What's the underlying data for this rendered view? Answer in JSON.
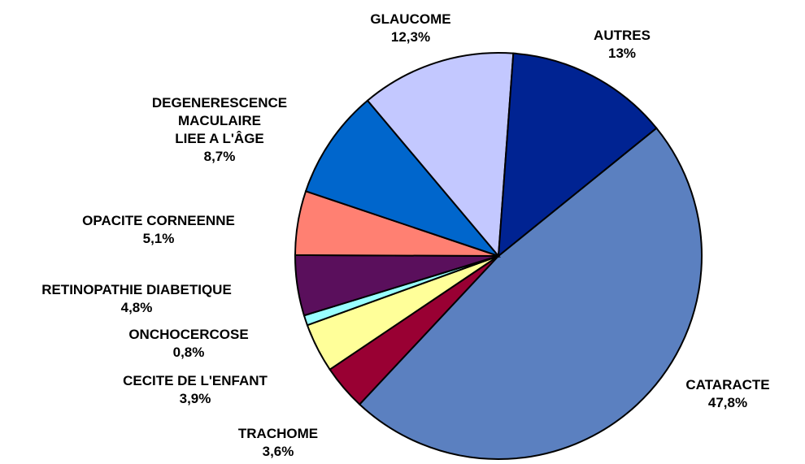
{
  "chart_data": {
    "type": "pie",
    "categories": [
      "CATARACTE",
      "TRACHOME",
      "CECITE DE L'ENFANT",
      "ONCHOCERCOSE",
      "RETINOPATHIE DIABETIQUE",
      "OPACITE CORNEENNE",
      "DEGENERESCENCE\nMACULAIRE\nLIEE A L'ÂGE",
      "GLAUCOME",
      "AUTRES"
    ],
    "values": [
      47.8,
      3.6,
      3.9,
      0.8,
      4.8,
      5.1,
      8.7,
      12.3,
      13
    ],
    "value_labels": [
      "47,8%",
      "3,6%",
      "3,9%",
      "0,8%",
      "4,8%",
      "5,1%",
      "8,7%",
      "12,3%",
      "13%"
    ],
    "colors": [
      "#5b80c0",
      "#990033",
      "#ffff99",
      "#99ffff",
      "#5a0f5c",
      "#ff8072",
      "#0066cc",
      "#c3c8ff",
      "#002392"
    ]
  }
}
